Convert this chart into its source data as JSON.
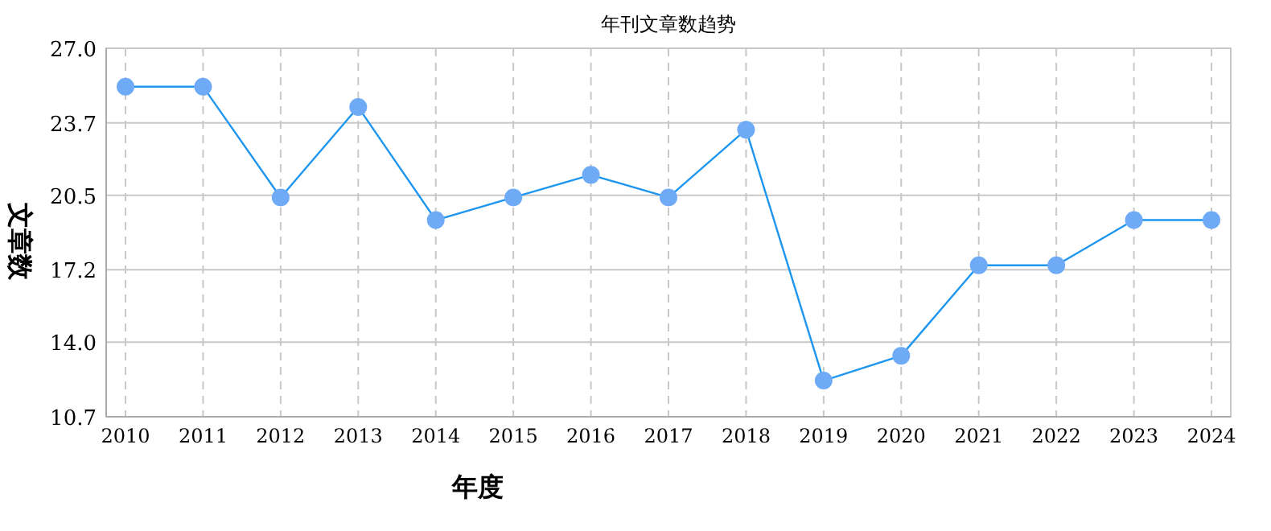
{
  "chart_data": {
    "type": "line",
    "title": "年刊文章数趋势",
    "xlabel": "年度",
    "ylabel": "文章数",
    "categories": [
      "2010",
      "2011",
      "2012",
      "2013",
      "2014",
      "2015",
      "2016",
      "2017",
      "2018",
      "2019",
      "2020",
      "2021",
      "2022",
      "2023",
      "2024"
    ],
    "series": [
      {
        "color": "#1e96f0",
        "values": [
          25.3,
          25.3,
          20.4,
          24.4,
          19.4,
          20.4,
          21.4,
          20.4,
          23.4,
          12.3,
          13.4,
          17.4,
          17.4,
          19.4,
          19.4
        ]
      }
    ],
    "ylim": [
      10.7,
      27.0
    ],
    "yticks": [
      {
        "value": 10.7,
        "label": "10.7"
      },
      {
        "value": 14.0,
        "label": "14.0"
      },
      {
        "value": 17.2,
        "label": "17.2"
      },
      {
        "value": 20.5,
        "label": "20.5"
      },
      {
        "value": 23.7,
        "label": "23.7"
      },
      {
        "value": 27.0,
        "label": "27.0"
      }
    ],
    "grid": true,
    "marker": "circle",
    "line_style": "solid"
  }
}
